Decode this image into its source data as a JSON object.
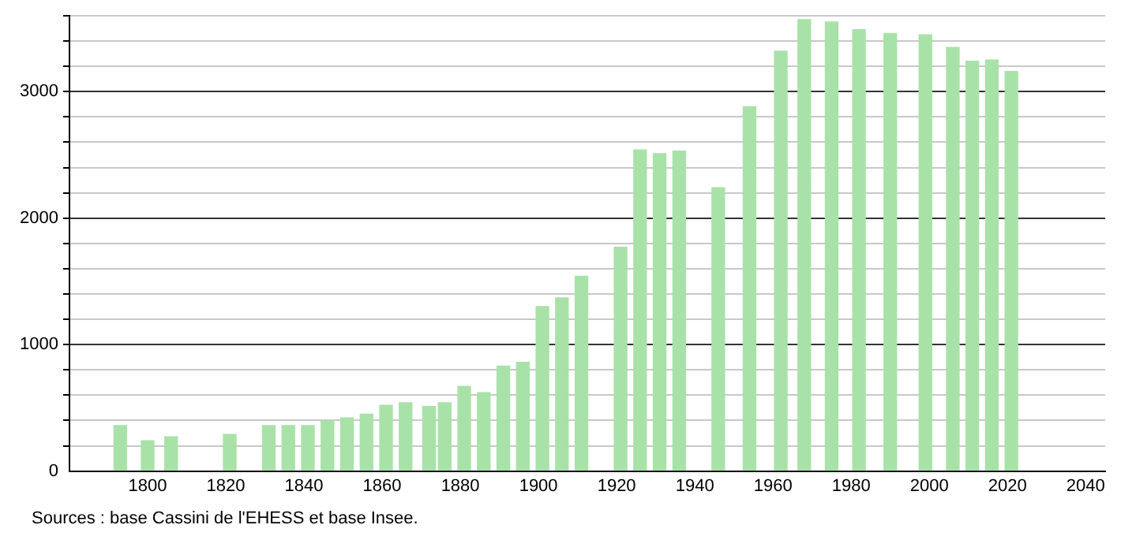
{
  "chart_data": {
    "type": "bar",
    "x": [
      1793,
      1800,
      1806,
      1821,
      1831,
      1836,
      1841,
      1846,
      1851,
      1856,
      1861,
      1866,
      1872,
      1876,
      1881,
      1886,
      1891,
      1896,
      1901,
      1906,
      1911,
      1921,
      1926,
      1931,
      1936,
      1946,
      1954,
      1962,
      1968,
      1975,
      1982,
      1990,
      1999,
      2006,
      2011,
      2016,
      2021
    ],
    "values": [
      360,
      240,
      270,
      290,
      360,
      360,
      360,
      400,
      420,
      450,
      520,
      540,
      510,
      540,
      670,
      620,
      830,
      860,
      1300,
      1370,
      1540,
      1770,
      2540,
      2510,
      2530,
      2240,
      2880,
      3320,
      3570,
      3550,
      3490,
      3460,
      3450,
      3350,
      3240,
      3250,
      3160
    ],
    "color": "#a8e2a8",
    "xlim": [
      1780,
      2045
    ],
    "xticks": [
      1800,
      1820,
      1840,
      1860,
      1880,
      1900,
      1920,
      1940,
      1960,
      1980,
      2000,
      2020,
      2040
    ],
    "ylim": [
      0,
      3600
    ],
    "yticks": [
      0,
      {
        "value": 200,
        "label": null
      },
      {
        "value": 400,
        "label": null
      },
      {
        "value": 600,
        "label": null
      },
      {
        "value": 800,
        "label": null
      },
      1000,
      {
        "value": 1200,
        "label": null
      },
      {
        "value": 1400,
        "label": null
      },
      {
        "value": 1600,
        "label": null
      },
      {
        "value": 1800,
        "label": null
      },
      2000,
      {
        "value": 2200,
        "label": null
      },
      {
        "value": 2400,
        "label": null
      },
      {
        "value": 2600,
        "label": null
      },
      {
        "value": 2800,
        "label": null
      },
      3000,
      {
        "value": 3200,
        "label": null
      },
      {
        "value": 3400,
        "label": null
      },
      {
        "value": 3600,
        "label": null
      }
    ],
    "grid": "y",
    "annotations": [
      "Sources : base Cassini de l'EHESS et base Insee."
    ]
  }
}
